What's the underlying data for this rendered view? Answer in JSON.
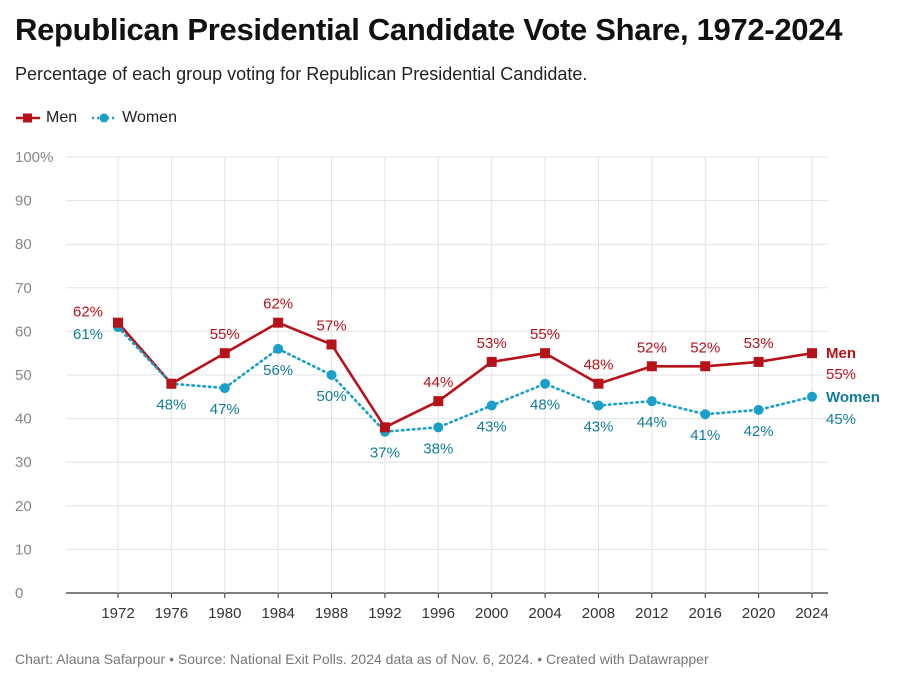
{
  "title": "Republican Presidential Candidate Vote Share, 1972-2024",
  "subtitle": "Percentage of each group voting for Republican Presidential Candidate.",
  "footer": {
    "chart_credit": "Chart: Alauna Safarpour",
    "source": "Source: National Exit Polls. 2024 data as of Nov. 6, 2024.",
    "created_with": "Created with Datawrapper",
    "separator": " • "
  },
  "colors": {
    "men": "#b5121b",
    "women": "#1a9fc9",
    "women_text": "#127d98",
    "grid": "#e3e3e3"
  },
  "chart_data": {
    "type": "line",
    "title": "Republican Presidential Candidate Vote Share, 1972-2024",
    "xlabel": "",
    "ylabel": "",
    "x": [
      "1972",
      "1976",
      "1980",
      "1984",
      "1988",
      "1992",
      "1996",
      "2000",
      "2004",
      "2008",
      "2012",
      "2016",
      "2020",
      "2024"
    ],
    "ylim": [
      0,
      100
    ],
    "yticks": [
      0,
      10,
      20,
      30,
      40,
      50,
      60,
      70,
      80,
      90,
      100
    ],
    "ytick_labels": [
      "0",
      "10",
      "20",
      "30",
      "40",
      "50",
      "60",
      "70",
      "80",
      "90",
      "100%"
    ],
    "legend_position": "top-left",
    "grid": true,
    "series": [
      {
        "key": "men",
        "name": "Men",
        "marker": "square",
        "style": "solid",
        "values": [
          62,
          48,
          55,
          62,
          57,
          38,
          44,
          53,
          55,
          48,
          52,
          52,
          53,
          55
        ],
        "labels": [
          "62%",
          "",
          "55%",
          "62%",
          "57%",
          "",
          "44%",
          "53%",
          "55%",
          "48%",
          "52%",
          "52%",
          "53%",
          "55%"
        ]
      },
      {
        "key": "women",
        "name": "Women",
        "marker": "circle",
        "style": "dotted",
        "values": [
          61,
          48,
          47,
          56,
          50,
          37,
          38,
          43,
          48,
          43,
          44,
          41,
          42,
          45
        ],
        "labels": [
          "61%",
          "48%",
          "47%",
          "56%",
          "50%",
          "37%",
          "38%",
          "43%",
          "48%",
          "43%",
          "44%",
          "41%",
          "42%",
          "45%"
        ]
      }
    ]
  }
}
